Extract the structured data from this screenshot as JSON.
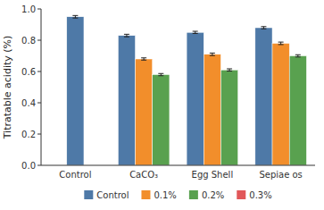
{
  "chart_data": {
    "type": "bar",
    "categories": [
      "Control",
      "CaCO₃",
      "Egg Shell",
      "Sepiae os"
    ],
    "series": [
      {
        "name": "Control",
        "color": "#4e79a7",
        "values": [
          0.95,
          0.83,
          0.85,
          0.88
        ],
        "errors": [
          0.008,
          0.008,
          0.007,
          0.007
        ]
      },
      {
        "name": "0.1%",
        "color": "#f28e2b",
        "values": [
          null,
          0.68,
          0.71,
          0.78
        ],
        "errors": [
          null,
          0.007,
          0.008,
          0.008
        ]
      },
      {
        "name": "0.2%",
        "color": "#59a14f",
        "values": [
          null,
          0.58,
          0.61,
          0.7
        ],
        "errors": [
          null,
          0.007,
          0.007,
          0.007
        ]
      },
      {
        "name": "0.3%",
        "color": "#e15759",
        "values": [
          null,
          null,
          null,
          null
        ],
        "errors": [
          null,
          null,
          null,
          null
        ]
      }
    ],
    "y_label": "Titratable acidity (%)",
    "ylim": [
      0.0,
      1.0
    ],
    "yticks": [
      {
        "value": 0.0,
        "label": "0.0"
      },
      0.2,
      0.4,
      0.6,
      0.8,
      {
        "value": 1.0,
        "label": "1.0"
      }
    ],
    "grid": false,
    "legend": "bottom"
  }
}
